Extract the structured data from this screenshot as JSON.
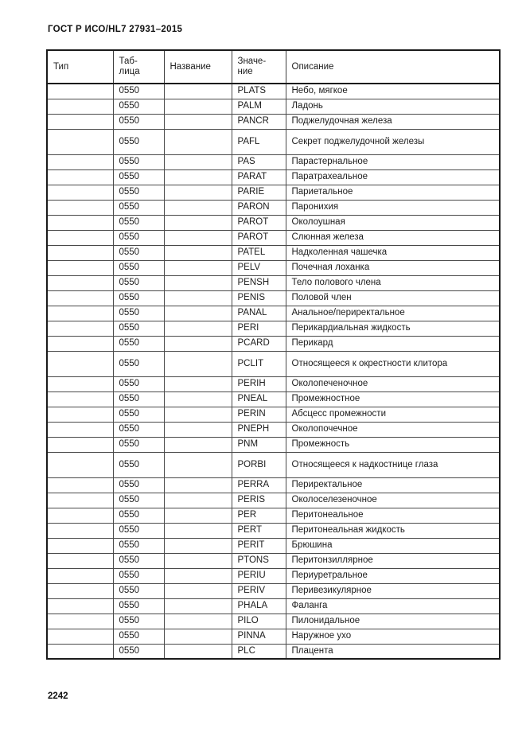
{
  "page": {
    "title": "ГОСТ Р ИСО/HL7 27931–2015",
    "page_number": "2242"
  },
  "table": {
    "headers": {
      "type": "Тип",
      "table": "Таб-\nлица",
      "name": "Название",
      "value": "Значе-\nние",
      "description": "Описание"
    },
    "rows": [
      {
        "type": "",
        "table": "0550",
        "name": "",
        "value": "PLATS",
        "description": "Небо, мягкое",
        "tall": false
      },
      {
        "type": "",
        "table": "0550",
        "name": "",
        "value": "PALM",
        "description": "Ладонь",
        "tall": false
      },
      {
        "type": "",
        "table": "0550",
        "name": "",
        "value": "PANCR",
        "description": "Поджелудочная железа",
        "tall": false
      },
      {
        "type": "",
        "table": "0550",
        "name": "",
        "value": "PAFL",
        "description": "Секрет поджелудочной железы",
        "tall": true
      },
      {
        "type": "",
        "table": "0550",
        "name": "",
        "value": "PAS",
        "description": "Парастернальное",
        "tall": false
      },
      {
        "type": "",
        "table": "0550",
        "name": "",
        "value": "PARAT",
        "description": "Паратрахеальное",
        "tall": false
      },
      {
        "type": "",
        "table": "0550",
        "name": "",
        "value": "PARIE",
        "description": "Париетальное",
        "tall": false
      },
      {
        "type": "",
        "table": "0550",
        "name": "",
        "value": "PARON",
        "description": "Паронихия",
        "tall": false
      },
      {
        "type": "",
        "table": "0550",
        "name": "",
        "value": "PAROT",
        "description": "Околоушная",
        "tall": false
      },
      {
        "type": "",
        "table": "0550",
        "name": "",
        "value": "PAROT",
        "description": "Слюнная железа",
        "tall": false
      },
      {
        "type": "",
        "table": "0550",
        "name": "",
        "value": "PATEL",
        "description": "Надколенная чашечка",
        "tall": false
      },
      {
        "type": "",
        "table": "0550",
        "name": "",
        "value": "PELV",
        "description": "Почечная лоханка",
        "tall": false
      },
      {
        "type": "",
        "table": "0550",
        "name": "",
        "value": "PENSH",
        "description": "Тело полового члена",
        "tall": false
      },
      {
        "type": "",
        "table": "0550",
        "name": "",
        "value": "PENIS",
        "description": "Половой член",
        "tall": false
      },
      {
        "type": "",
        "table": "0550",
        "name": "",
        "value": "PANAL",
        "description": "Анальное/периректальное",
        "tall": false
      },
      {
        "type": "",
        "table": "0550",
        "name": "",
        "value": "PERI",
        "description": "Перикардиальная жидкость",
        "tall": false
      },
      {
        "type": "",
        "table": "0550",
        "name": "",
        "value": "PCARD",
        "description": "Перикард",
        "tall": false
      },
      {
        "type": "",
        "table": "0550",
        "name": "",
        "value": "PCLIT",
        "description": "Относящееся к окрестности клитора",
        "tall": true
      },
      {
        "type": "",
        "table": "0550",
        "name": "",
        "value": "PERIH",
        "description": "Околопеченочное",
        "tall": false
      },
      {
        "type": "",
        "table": "0550",
        "name": "",
        "value": "PNEAL",
        "description": "Промежностное",
        "tall": false
      },
      {
        "type": "",
        "table": "0550",
        "name": "",
        "value": "PERIN",
        "description": "Абсцесс промежности",
        "tall": false
      },
      {
        "type": "",
        "table": "0550",
        "name": "",
        "value": "PNEPH",
        "description": "Околопочечное",
        "tall": false
      },
      {
        "type": "",
        "table": "0550",
        "name": "",
        "value": "PNM",
        "description": "Промежность",
        "tall": false
      },
      {
        "type": "",
        "table": "0550",
        "name": "",
        "value": "PORBI",
        "description": "Относящееся к надкостнице глаза",
        "tall": true
      },
      {
        "type": "",
        "table": "0550",
        "name": "",
        "value": "PERRA",
        "description": "Периректальное",
        "tall": false
      },
      {
        "type": "",
        "table": "0550",
        "name": "",
        "value": "PERIS",
        "description": "Околоселезеночное",
        "tall": false
      },
      {
        "type": "",
        "table": "0550",
        "name": "",
        "value": "PER",
        "description": "Перитонеальное",
        "tall": false
      },
      {
        "type": "",
        "table": "0550",
        "name": "",
        "value": "PERT",
        "description": "Перитонеальная жидкость",
        "tall": false
      },
      {
        "type": "",
        "table": "0550",
        "name": "",
        "value": "PERIT",
        "description": "Брюшина",
        "tall": false
      },
      {
        "type": "",
        "table": "0550",
        "name": "",
        "value": "PTONS",
        "description": "Перитонзиллярное",
        "tall": false
      },
      {
        "type": "",
        "table": "0550",
        "name": "",
        "value": "PERIU",
        "description": "Периуретральное",
        "tall": false
      },
      {
        "type": "",
        "table": "0550",
        "name": "",
        "value": "PERIV",
        "description": "Перивезикулярное",
        "tall": false
      },
      {
        "type": "",
        "table": "0550",
        "name": "",
        "value": "PHALA",
        "description": "Фаланга",
        "tall": false
      },
      {
        "type": "",
        "table": "0550",
        "name": "",
        "value": "PILO",
        "description": "Пилонидальное",
        "tall": false
      },
      {
        "type": "",
        "table": "0550",
        "name": "",
        "value": "PINNA",
        "description": "Наружное ухо",
        "tall": false
      },
      {
        "type": "",
        "table": "0550",
        "name": "",
        "value": "PLC",
        "description": "Плацента",
        "tall": false
      }
    ]
  }
}
